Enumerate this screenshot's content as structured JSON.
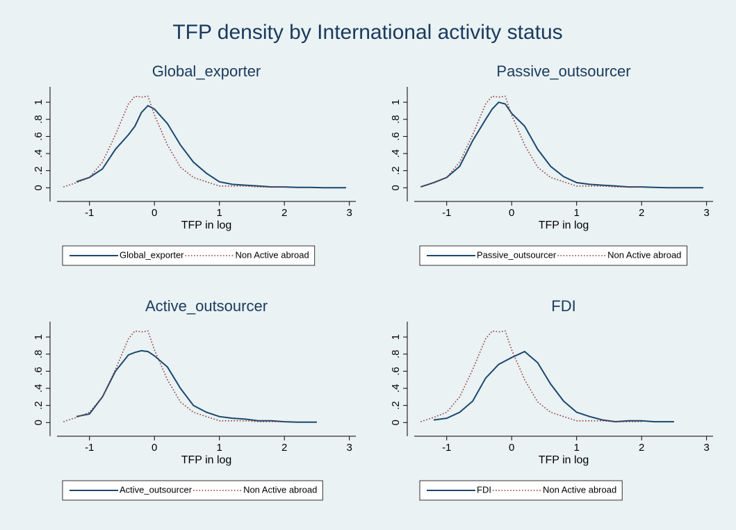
{
  "title": "TFP density by International activity status",
  "chart_data": [
    {
      "type": "line",
      "title": "Global_exporter",
      "xlabel": "TFP in log",
      "legend": "bottom",
      "x": [
        -1.4,
        -1.2,
        -1,
        -0.8,
        -0.6,
        -0.4,
        -0.3,
        -0.2,
        -0.1,
        0,
        0.2,
        0.4,
        0.6,
        0.8,
        1,
        1.2,
        1.4,
        1.6,
        1.8,
        2,
        2.2,
        2.4,
        2.6,
        2.8,
        2.95
      ],
      "xlim": [
        -1.5,
        3.1
      ],
      "xticks": [
        -1,
        0,
        1,
        2,
        3
      ],
      "ylim": [
        -0.16,
        1.18
      ],
      "yticks": [
        0,
        {
          "value": 0.2,
          "label": ".2"
        },
        {
          "value": 0.4,
          "label": ".4"
        },
        {
          "value": 0.6,
          "label": ".6"
        },
        {
          "value": 0.8,
          "label": ".8"
        },
        1
      ],
      "series": [
        {
          "name": "Global_exporter",
          "color": "#1a476f",
          "style": "solid",
          "values": [
            null,
            0.07,
            0.12,
            0.22,
            0.45,
            0.62,
            0.72,
            0.88,
            0.96,
            0.92,
            0.75,
            0.5,
            0.3,
            0.17,
            0.07,
            0.04,
            0.03,
            0.02,
            0.01,
            0.01,
            0.005,
            0.005,
            0,
            0,
            0
          ]
        },
        {
          "name": "Non Active abroad",
          "color": "#90353b",
          "style": "dotted",
          "values": [
            0.01,
            0.06,
            0.12,
            0.3,
            0.62,
            0.98,
            1.07,
            1.06,
            1.07,
            0.85,
            0.5,
            0.24,
            0.12,
            0.07,
            0.02,
            0.02,
            0.02,
            0.01,
            0.01,
            0.01,
            null,
            null,
            null,
            null,
            null
          ]
        }
      ]
    },
    {
      "type": "line",
      "title": "Passive_outsourcer",
      "xlabel": "TFP in log",
      "legend": "bottom",
      "x": [
        -1.4,
        -1.2,
        -1,
        -0.8,
        -0.6,
        -0.4,
        -0.3,
        -0.2,
        -0.1,
        0,
        0.2,
        0.4,
        0.6,
        0.8,
        1,
        1.2,
        1.4,
        1.6,
        1.8,
        2,
        2.2,
        2.4,
        2.6,
        2.8,
        2.95
      ],
      "xlim": [
        -1.5,
        3.1
      ],
      "xticks": [
        -1,
        0,
        1,
        2,
        3
      ],
      "ylim": [
        -0.16,
        1.18
      ],
      "yticks": [
        0,
        {
          "value": 0.2,
          "label": ".2"
        },
        {
          "value": 0.4,
          "label": ".4"
        },
        {
          "value": 0.6,
          "label": ".6"
        },
        {
          "value": 0.8,
          "label": ".8"
        },
        1
      ],
      "series": [
        {
          "name": "Passive_outsourcer",
          "color": "#1a476f",
          "style": "solid",
          "values": [
            0.01,
            0.06,
            0.12,
            0.25,
            0.55,
            0.8,
            0.92,
            1.0,
            0.98,
            0.87,
            0.72,
            0.45,
            0.25,
            0.13,
            0.06,
            0.04,
            0.03,
            0.02,
            0.01,
            0.01,
            0.005,
            0,
            0,
            0,
            0
          ]
        },
        {
          "name": "Non Active abroad",
          "color": "#90353b",
          "style": "dotted",
          "values": [
            0.01,
            0.06,
            0.12,
            0.3,
            0.62,
            0.98,
            1.07,
            1.06,
            1.07,
            0.85,
            0.5,
            0.24,
            0.12,
            0.07,
            0.02,
            0.02,
            0.02,
            0.01,
            0.01,
            0.01,
            null,
            null,
            null,
            null,
            null
          ]
        }
      ]
    },
    {
      "type": "line",
      "title": "Active_outsourcer",
      "xlabel": "TFP in log",
      "legend": "bottom",
      "x": [
        -1.4,
        -1.2,
        -1,
        -0.8,
        -0.6,
        -0.4,
        -0.3,
        -0.2,
        -0.1,
        0,
        0.2,
        0.4,
        0.6,
        0.8,
        1,
        1.2,
        1.4,
        1.6,
        1.8,
        2,
        2.2,
        2.5
      ],
      "xlim": [
        -1.5,
        3.1
      ],
      "xticks": [
        -1,
        0,
        1,
        2,
        3
      ],
      "ylim": [
        -0.16,
        1.18
      ],
      "yticks": [
        0,
        {
          "value": 0.2,
          "label": ".2"
        },
        {
          "value": 0.4,
          "label": ".4"
        },
        {
          "value": 0.6,
          "label": ".6"
        },
        {
          "value": 0.8,
          "label": ".8"
        },
        1
      ],
      "series": [
        {
          "name": "Active_outsourcer",
          "color": "#1a476f",
          "style": "solid",
          "values": [
            null,
            0.07,
            0.1,
            0.3,
            0.6,
            0.79,
            0.82,
            0.84,
            0.83,
            0.78,
            0.65,
            0.4,
            0.2,
            0.12,
            0.07,
            0.05,
            0.04,
            0.02,
            0.02,
            0.01,
            0.005,
            0.005
          ]
        },
        {
          "name": "Non Active abroad",
          "color": "#90353b",
          "style": "dotted",
          "values": [
            0.01,
            0.06,
            0.12,
            0.3,
            0.62,
            0.98,
            1.07,
            1.06,
            1.07,
            0.85,
            0.5,
            0.24,
            0.12,
            0.07,
            0.02,
            0.02,
            0.02,
            0.01,
            0.01,
            0.01,
            null,
            null
          ]
        }
      ]
    },
    {
      "type": "line",
      "title": "FDI",
      "xlabel": "TFP in log",
      "legend": "bottom",
      "x": [
        -1.4,
        -1.2,
        -1,
        -0.8,
        -0.6,
        -0.4,
        -0.3,
        -0.2,
        -0.1,
        0,
        0.2,
        0.4,
        0.6,
        0.8,
        1,
        1.2,
        1.4,
        1.6,
        1.8,
        2,
        2.2,
        2.5
      ],
      "xlim": [
        -1.5,
        3.1
      ],
      "xticks": [
        -1,
        0,
        1,
        2,
        3
      ],
      "ylim": [
        -0.16,
        1.18
      ],
      "yticks": [
        0,
        {
          "value": 0.2,
          "label": ".2"
        },
        {
          "value": 0.4,
          "label": ".4"
        },
        {
          "value": 0.6,
          "label": ".6"
        },
        {
          "value": 0.8,
          "label": ".8"
        },
        1
      ],
      "series": [
        {
          "name": "FDI",
          "color": "#1a476f",
          "style": "solid",
          "values": [
            null,
            0.03,
            0.05,
            0.12,
            0.25,
            0.52,
            0.6,
            0.68,
            0.72,
            0.76,
            0.83,
            0.7,
            0.45,
            0.25,
            0.12,
            0.07,
            0.03,
            0.01,
            0.02,
            0.02,
            0.01,
            0.01
          ]
        },
        {
          "name": "Non Active abroad",
          "color": "#90353b",
          "style": "dotted",
          "values": [
            0.01,
            0.06,
            0.12,
            0.3,
            0.62,
            0.98,
            1.07,
            1.06,
            1.07,
            0.85,
            0.5,
            0.24,
            0.12,
            0.07,
            0.02,
            0.02,
            0.02,
            0.01,
            0.01,
            0.01,
            null,
            null
          ]
        }
      ]
    }
  ]
}
